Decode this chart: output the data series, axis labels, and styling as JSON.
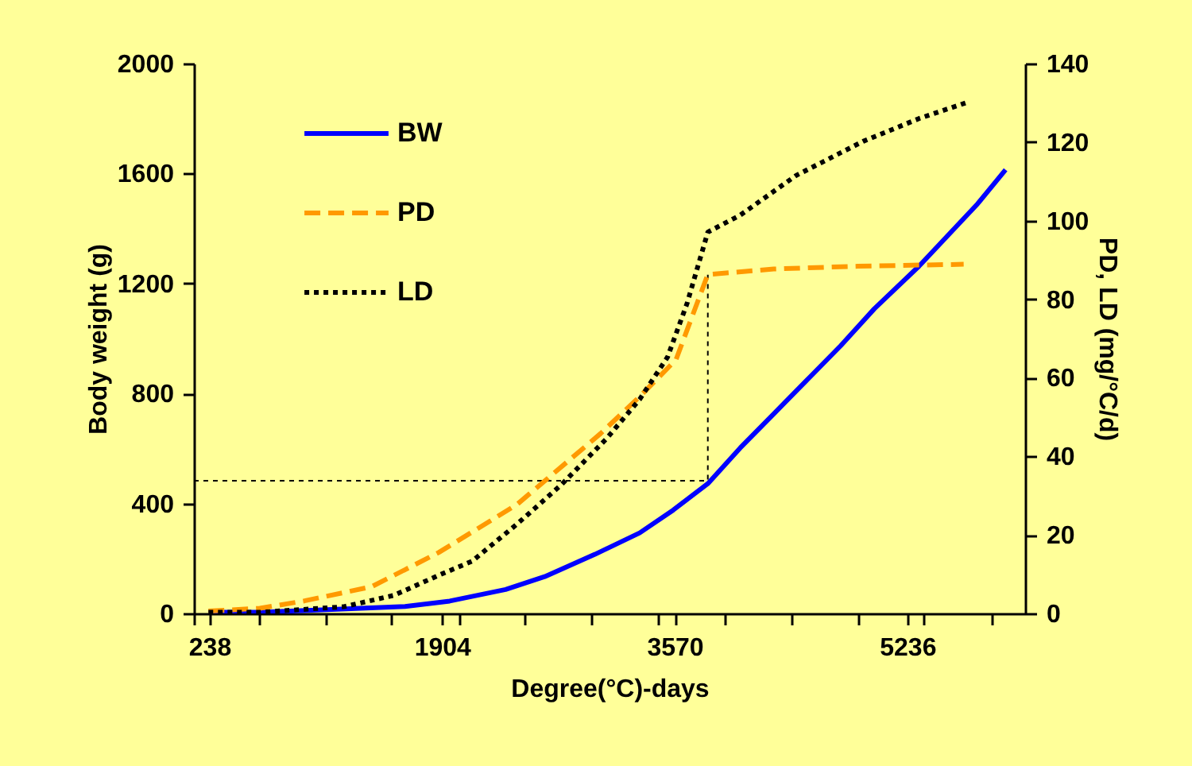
{
  "chart_data": {
    "type": "line",
    "xlabel": "Degree(°C)-days",
    "ylabel": "Body weight (g)",
    "y2label": "PD, LD (mg/°C/d)",
    "xlim": [
      127,
      6079
    ],
    "xticks": [
      {
        "value": 127,
        "label": null
      },
      238,
      {
        "value": 599,
        "label": null
      },
      {
        "value": 1071,
        "label": null
      },
      {
        "value": 1543,
        "label": null
      },
      1904,
      {
        "value": 2023,
        "label": null
      },
      {
        "value": 2499,
        "label": null
      },
      {
        "value": 2975,
        "label": null
      },
      {
        "value": 3451,
        "label": null
      },
      3570,
      {
        "value": 3927,
        "label": null
      },
      {
        "value": 4403,
        "label": null
      },
      {
        "value": 4879,
        "label": null
      },
      5236,
      {
        "value": 5355,
        "label": null
      },
      {
        "value": 5835,
        "label": null
      }
    ],
    "ylim": [
      0,
      2000
    ],
    "yticks": [
      0,
      400,
      800,
      1200,
      1600,
      2000
    ],
    "y2lim": [
      0,
      140
    ],
    "y2ticks": [
      0,
      20,
      40,
      60,
      80,
      100,
      120,
      140
    ],
    "grid": false,
    "legend": "top left",
    "marker": "none",
    "series": [
      {
        "name": "BW",
        "color": "#0000ff",
        "line_style": "solid",
        "x": [
          231,
          599,
          1079,
          1639,
          1959,
          2359,
          2639,
          2999,
          3319,
          3559,
          3807,
          4039,
          4279,
          4519,
          4759,
          4999,
          5319,
          5739,
          5939
        ],
        "values": [
          4,
          4,
          14,
          25,
          45,
          87,
          134,
          215,
          293,
          376,
          472,
          602,
          726,
          850,
          974,
          1108,
          1263,
          1490,
          1614
        ]
      },
      {
        "name": "PD",
        "color": "#ff9900",
        "line_style": "dashed",
        "axis": "y2",
        "x": [
          231,
          599,
          919,
          1399,
          1879,
          2439,
          3039,
          3319,
          3579,
          3807,
          4279,
          4879,
          5639
        ],
        "values": [
          0.6,
          1.3,
          3.2,
          6.8,
          15.5,
          27.7,
          45.8,
          55.2,
          64.6,
          86.3,
          87.7,
          88.4,
          88.9
        ]
      },
      {
        "name": "LD",
        "color": "#000000",
        "line_style": "dotted",
        "axis": "y2",
        "x": [
          231,
          599,
          1199,
          1559,
          1879,
          2119,
          2439,
          2759,
          3079,
          3319,
          3519,
          3659,
          3807,
          4039,
          4439,
          4919,
          5319,
          5679
        ],
        "values": [
          0.3,
          0.3,
          1.7,
          4.6,
          9.7,
          13.3,
          22.7,
          32.8,
          44.4,
          54.5,
          65.3,
          79,
          97.1,
          101.4,
          111.5,
          120.2,
          126,
          130.3
        ]
      },
      {
        "color": "#000000",
        "line_style": "dotted",
        "x": [
          127,
          3807,
          3807
        ],
        "values": [
          483,
          483,
          1232
        ]
      }
    ]
  }
}
